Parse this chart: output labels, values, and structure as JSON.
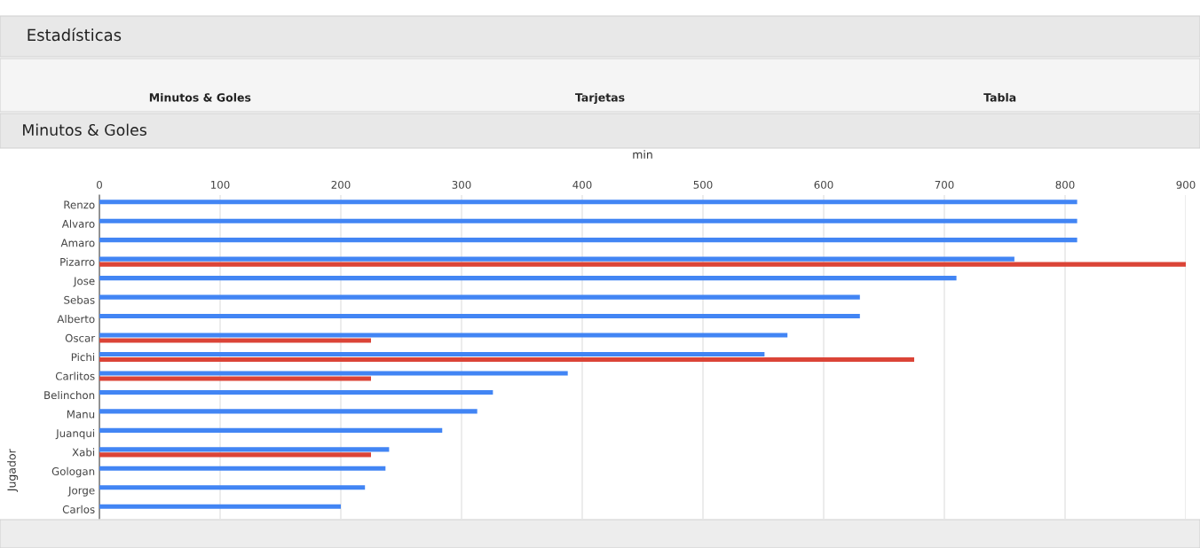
{
  "chart_data": {
    "type": "bar",
    "orientation": "horizontal",
    "title": "Minutos & Goles",
    "xlabel": "min",
    "ylabel": "Jugador",
    "annotations": [
      "Estadísticas",
      "Minutos & Goles",
      "Tarjetas",
      "Tabla"
    ],
    "categories": [
      "Renzo",
      "Alvaro",
      "Amaro",
      "Pizarro",
      "Jose",
      "Sebas",
      "Alberto",
      "Oscar",
      "Pichi",
      "Carlitos",
      "Belinchon",
      "Manu",
      "Juanqui",
      "Xabi",
      "Gologan",
      "Jorge",
      "Carlos"
    ],
    "series": [
      {
        "color": "#4285f4",
        "values": [
          810,
          810,
          810,
          758,
          710,
          630,
          630,
          570,
          551,
          388,
          326,
          313,
          284,
          240,
          237,
          220,
          200
        ]
      },
      {
        "color": "#db4437",
        "values": [
          null,
          null,
          null,
          900,
          null,
          null,
          null,
          225,
          675,
          225,
          null,
          null,
          null,
          225,
          null,
          null,
          null
        ]
      }
    ],
    "xlim": [
      0,
      900
    ],
    "xticks": [
      0,
      100,
      200,
      300,
      400,
      500,
      600,
      700,
      800,
      900
    ],
    "grid": "x",
    "legend": false
  }
}
